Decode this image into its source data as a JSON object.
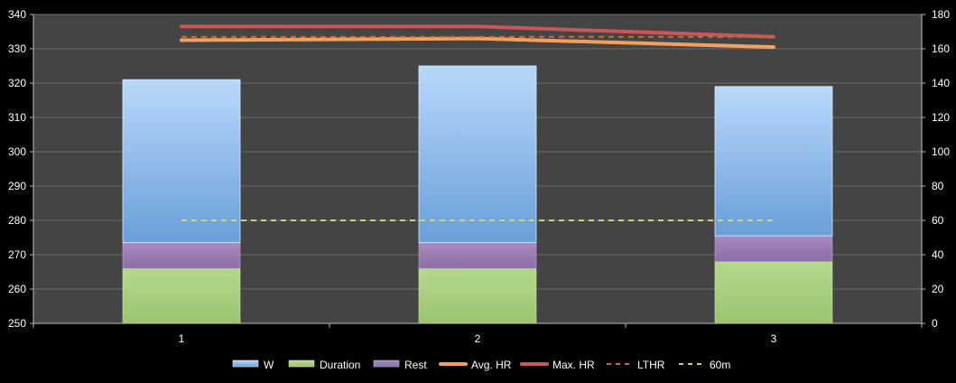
{
  "chart_data": {
    "type": "bar",
    "categories": [
      "1",
      "2",
      "3"
    ],
    "y_left": {
      "min": 250,
      "max": 340,
      "step": 10,
      "ticks": [
        "250",
        "260",
        "270",
        "280",
        "290",
        "300",
        "310",
        "320",
        "330",
        "340"
      ]
    },
    "y_right": {
      "min": 0,
      "max": 180,
      "step": 20,
      "ticks": [
        "0",
        "20",
        "40",
        "60",
        "80",
        "100",
        "120",
        "140",
        "160",
        "180"
      ]
    },
    "stacked_series": [
      {
        "name": "Duration",
        "axis": "right",
        "values": [
          32,
          32,
          36
        ],
        "color": "#a8cf80"
      },
      {
        "name": "Rest",
        "axis": "right",
        "values": [
          15,
          15,
          15
        ],
        "color": "#9d7fb7"
      },
      {
        "name": "W",
        "axis": "left",
        "values": [
          321,
          325,
          319
        ],
        "color": "#8fbbe8",
        "note": "bar top"
      }
    ],
    "line_series": [
      {
        "name": "Avg. HR",
        "axis": "right",
        "values": [
          165,
          166,
          161
        ],
        "color": "#f5a05a",
        "style": "solid"
      },
      {
        "name": "Max. HR",
        "axis": "right",
        "values": [
          173,
          173,
          167
        ],
        "color": "#c9575a",
        "style": "solid"
      },
      {
        "name": "LTHR",
        "axis": "right",
        "values": [
          167,
          167,
          167
        ],
        "color": "#c0703e",
        "style": "dashed"
      },
      {
        "name": "60m",
        "axis": "right",
        "values": [
          60,
          60,
          60
        ],
        "color": "#c8d47a",
        "style": "dashed"
      }
    ],
    "legend": [
      "W",
      "Duration",
      "Rest",
      "Avg. HR",
      "Max. HR",
      "LTHR",
      "60m"
    ],
    "legend_position": "bottom",
    "grid": true,
    "background": "#444444"
  }
}
